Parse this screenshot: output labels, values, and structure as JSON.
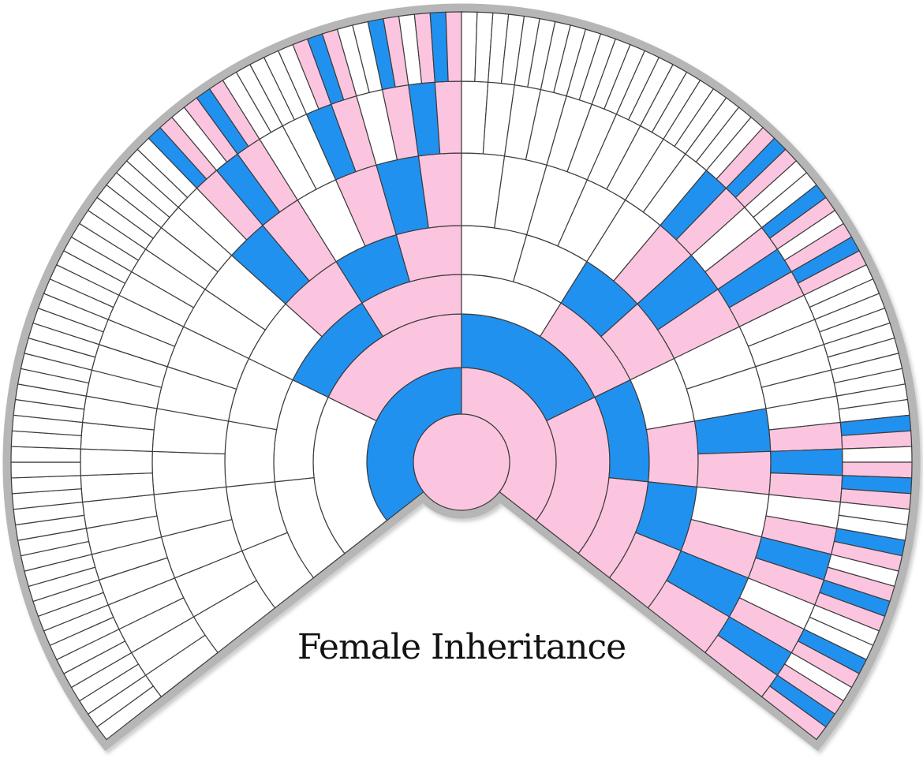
{
  "chart_data": {
    "type": "sunburst",
    "title": "Female Inheritance",
    "layout": {
      "span_degrees": 256,
      "generations": 8,
      "segments_per_ring": [
        1,
        2,
        4,
        8,
        16,
        32,
        64,
        128
      ]
    },
    "colors": {
      "P": "#FBC5E0",
      "B": "#2191F0",
      "W": "#FFFFFF",
      "segment_outline": "#3C3C3C",
      "border": "#B6B6B6",
      "title_color": "#121212",
      "background": "#FFFFFF"
    },
    "center": {
      "generation": 1,
      "code": "P"
    },
    "rings": [
      {
        "generation": 2,
        "segments": "BP"
      },
      {
        "generation": 3,
        "segments": "WPBP"
      },
      {
        "generation": 4,
        "segments": "WWBPWPBP"
      },
      {
        "generation": 5,
        "segments": "WWWWWPBPWWBPWPBP"
      },
      {
        "generation": 6,
        "segments": "WWWWWWWWWWBPWPBPWWWWWPBPWWBPWPBP"
      },
      {
        "generation": 7,
        "segments": "WWWWWWWWWWWWWWWWWWWWWPBPWWBPWPBPWWWWWWWWWWBPWPBPWWWWWPBPWPBPWPBP"
      },
      {
        "generation": 8,
        "segments": "WWWWWWWWWWWWWWWWWWWWWWWWWWWWWWWWWWWWWWWWWWBPWPBPWWWWWPBPWWBPWPBPWWWWWWWWWWWWWWWWWWWWWPBPWWBPWPBPWWWWWWWWWWBPWPBPWWBPWPBPWWBPWPBP"
      }
    ]
  }
}
